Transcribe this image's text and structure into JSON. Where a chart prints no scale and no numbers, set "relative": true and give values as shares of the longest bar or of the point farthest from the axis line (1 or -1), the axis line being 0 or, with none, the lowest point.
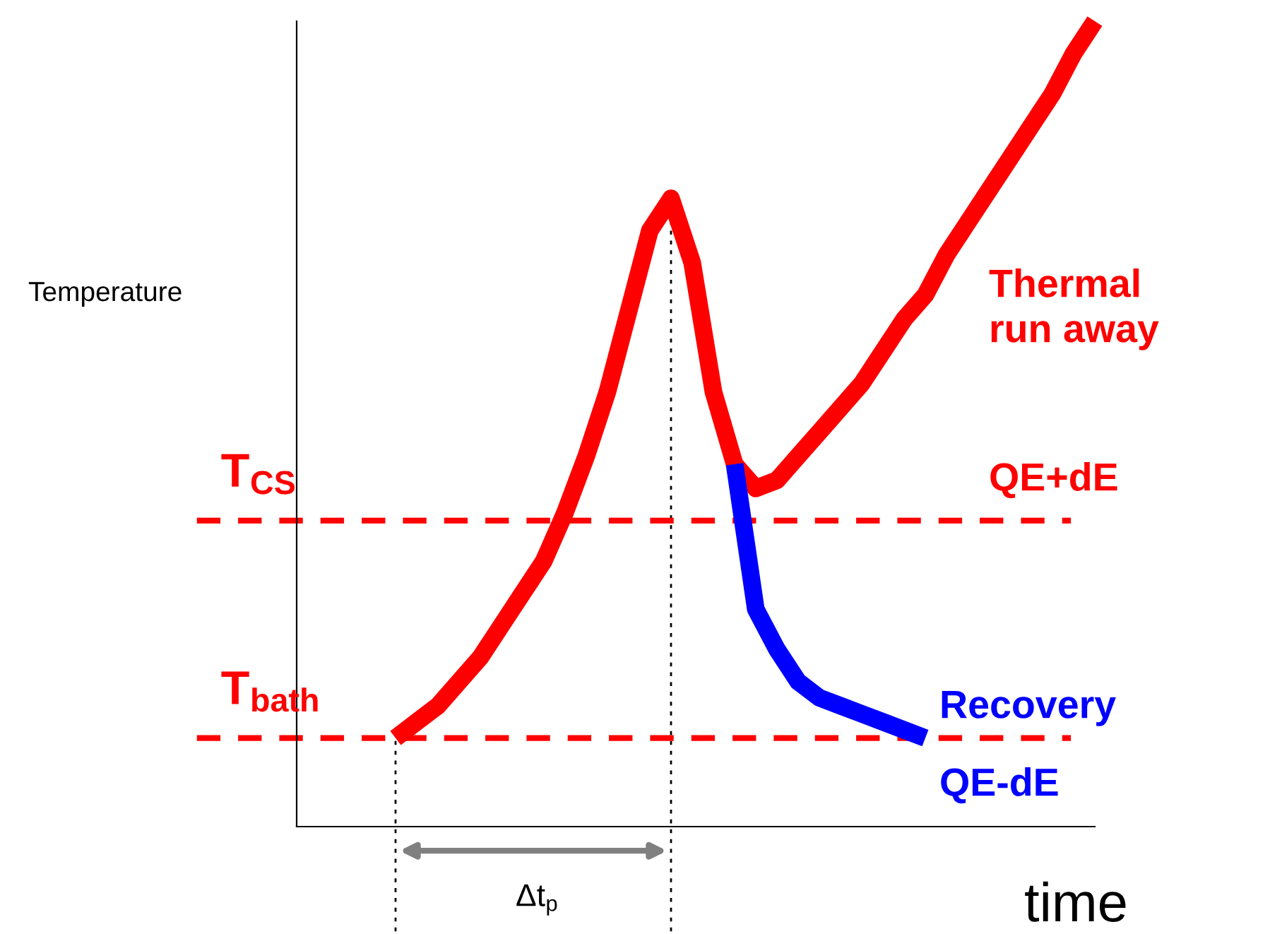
{
  "chart_data": {
    "type": "line",
    "relative": true,
    "xlabel": "time",
    "categories": [
      null,
      null,
      null,
      null,
      null,
      null,
      null,
      null,
      null,
      null,
      null,
      null,
      null,
      null,
      null,
      null,
      null,
      null,
      null,
      null,
      null,
      null,
      null,
      null,
      null,
      null,
      null,
      null,
      null,
      null,
      null,
      null,
      null,
      null
    ],
    "series": [
      {
        "name": "Thermal\nrun away",
        "color": "#ff0000",
        "values": [
          0.11,
          0.13,
          0.15,
          0.18,
          0.21,
          0.25,
          0.29,
          0.33,
          0.39,
          0.46,
          0.54,
          0.64,
          0.74,
          0.78,
          0.7,
          0.54,
          0.45,
          0.42,
          0.43,
          0.46,
          0.49,
          0.52,
          0.55,
          0.59,
          0.63,
          0.66,
          0.71,
          0.75,
          0.79,
          0.83,
          0.87,
          0.91,
          0.96,
          1
        ]
      },
      {
        "name": "Recovery",
        "color": "#0000ff",
        "values": [
          null,
          null,
          null,
          null,
          null,
          null,
          null,
          null,
          null,
          null,
          null,
          null,
          null,
          null,
          null,
          null,
          0.45,
          0.27,
          0.22,
          0.18,
          0.16,
          0.15,
          0.14,
          0.13,
          0.12,
          0.11,
          null,
          null,
          null,
          null,
          null,
          null,
          null,
          null
        ]
      }
    ],
    "ref_lines": [
      {
        "axis": "y",
        "value": 0.38,
        "label": "T$_{CS}$",
        "color": "#ff0000",
        "line_style": "dashed"
      },
      {
        "axis": "y",
        "value": 0.11,
        "label": "T$_{bath}$",
        "color": "#ff0000",
        "line_style": "dashed"
      }
    ],
    "annotations": [
      "QE+dE",
      "QE-dE",
      "Δt$_{p}$",
      "Temperature"
    ],
    "grid": false,
    "line_style": "solid",
    "marker": "none"
  }
}
